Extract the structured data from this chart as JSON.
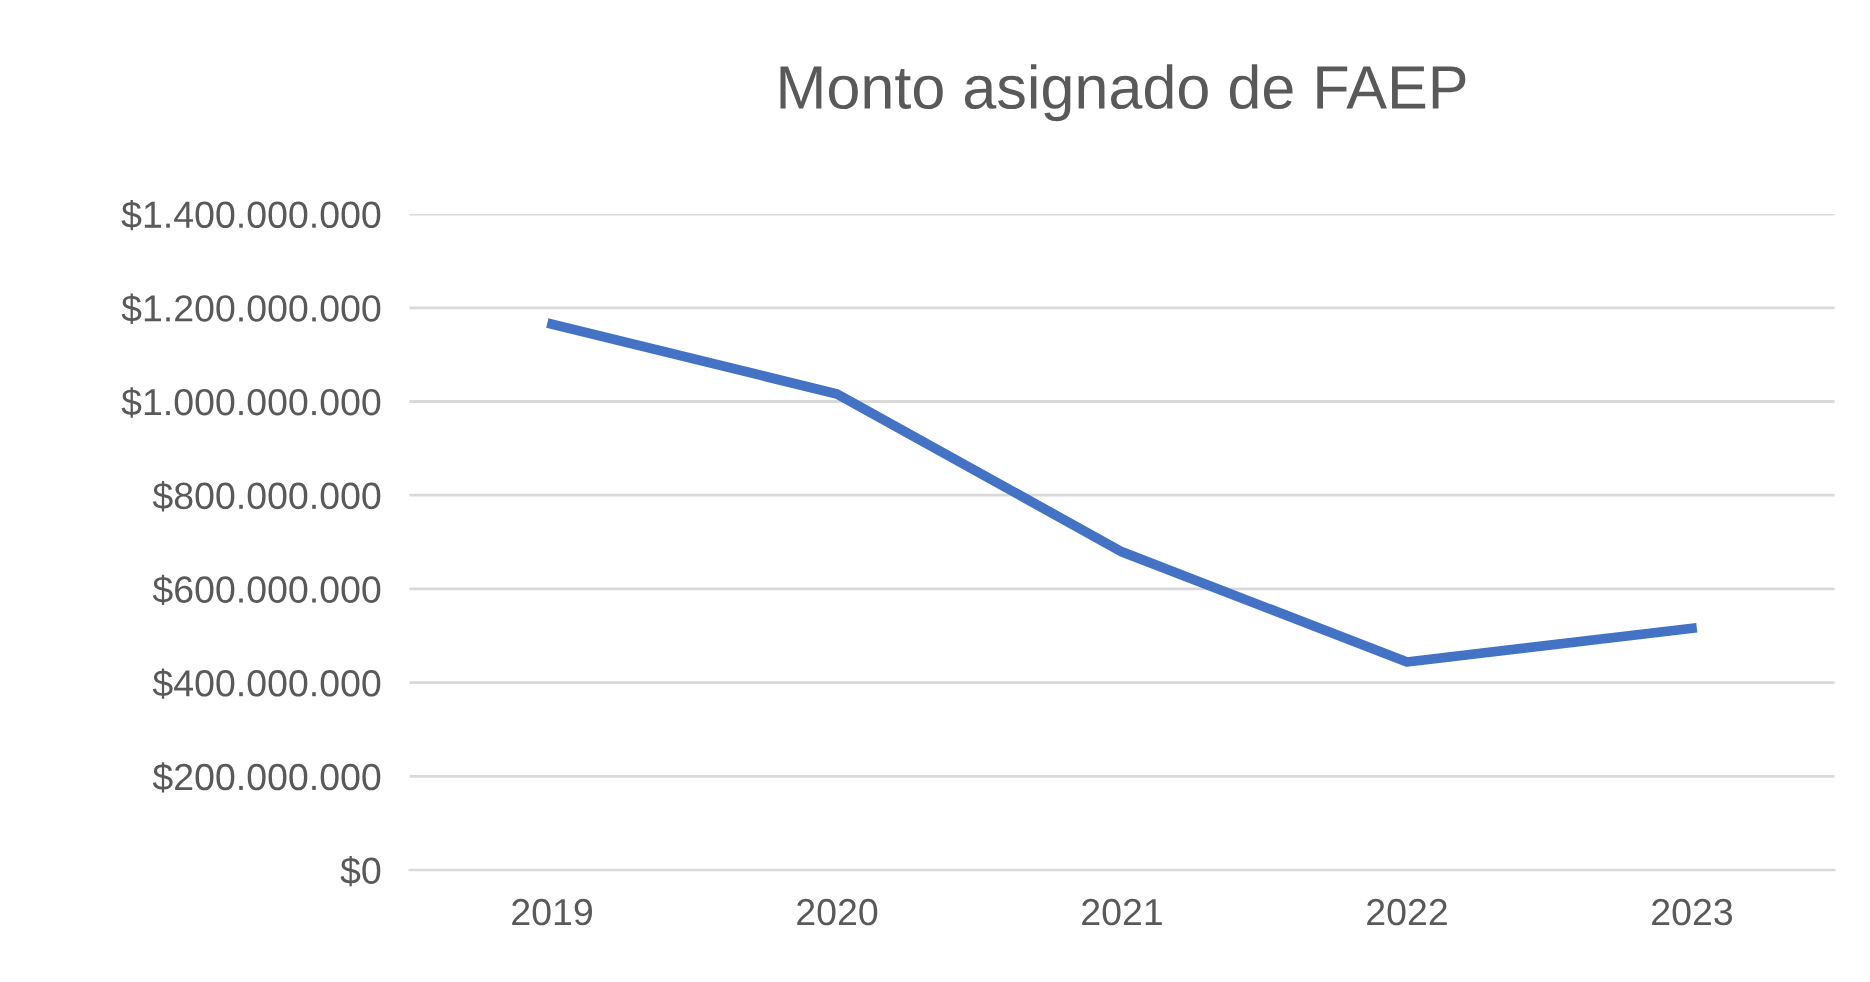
{
  "chart_data": {
    "type": "line",
    "title": "Monto asignado de FAEP",
    "categories": [
      "2019",
      "2020",
      "2021",
      "2022",
      "2023"
    ],
    "series": [
      {
        "color": "#4472c4",
        "values": [
          1165000000,
          1016000000,
          679000000,
          444000000,
          516000000
        ]
      }
    ],
    "ylim": [
      0,
      1400000000
    ],
    "yticks": [
      {
        "value": 0,
        "label": "$0"
      },
      {
        "value": 200000000,
        "label": "$200.000.000"
      },
      {
        "value": 400000000,
        "label": "$400.000.000"
      },
      {
        "value": 600000000,
        "label": "$600.000.000"
      },
      {
        "value": 800000000,
        "label": "$800.000.000"
      },
      {
        "value": 1000000000,
        "label": "$1.000.000.000"
      },
      {
        "value": 1200000000,
        "label": "$1.200.000.000"
      },
      {
        "value": 1400000000,
        "label": "$1.400.000.000"
      }
    ],
    "grid": "y",
    "marker": "none",
    "line_style": "solid"
  }
}
